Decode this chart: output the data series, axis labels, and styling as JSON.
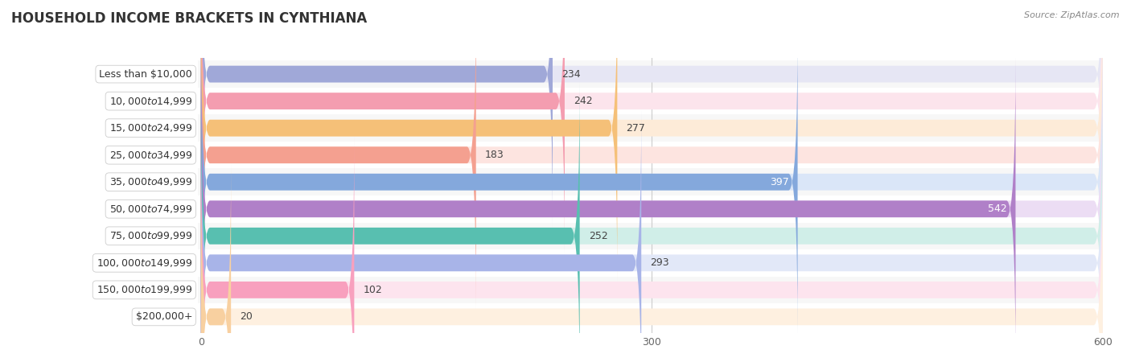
{
  "title": "HOUSEHOLD INCOME BRACKETS IN CYNTHIANA",
  "source": "Source: ZipAtlas.com",
  "categories": [
    "Less than $10,000",
    "$10,000 to $14,999",
    "$15,000 to $24,999",
    "$25,000 to $34,999",
    "$35,000 to $49,999",
    "$50,000 to $74,999",
    "$75,000 to $99,999",
    "$100,000 to $149,999",
    "$150,000 to $199,999",
    "$200,000+"
  ],
  "values": [
    234,
    242,
    277,
    183,
    397,
    542,
    252,
    293,
    102,
    20
  ],
  "bar_colors": [
    "#a0a8d8",
    "#f49db0",
    "#f5c078",
    "#f4a090",
    "#84a8dc",
    "#b080c8",
    "#58bfb0",
    "#a8b4e8",
    "#f8a0be",
    "#f8d0a0"
  ],
  "bar_bg_colors": [
    "#e6e6f4",
    "#fce4ec",
    "#fdebd8",
    "#fde4e0",
    "#dae6f8",
    "#ecddf4",
    "#d0eee8",
    "#e2e8f8",
    "#fde4ee",
    "#fef0e0"
  ],
  "xlim": [
    0,
    600
  ],
  "xticks": [
    0,
    300,
    600
  ],
  "background_color": "#ffffff",
  "row_bg_colors": [
    "#f0f0f0",
    "#ffffff"
  ],
  "title_fontsize": 12,
  "label_fontsize": 9,
  "value_fontsize": 9
}
